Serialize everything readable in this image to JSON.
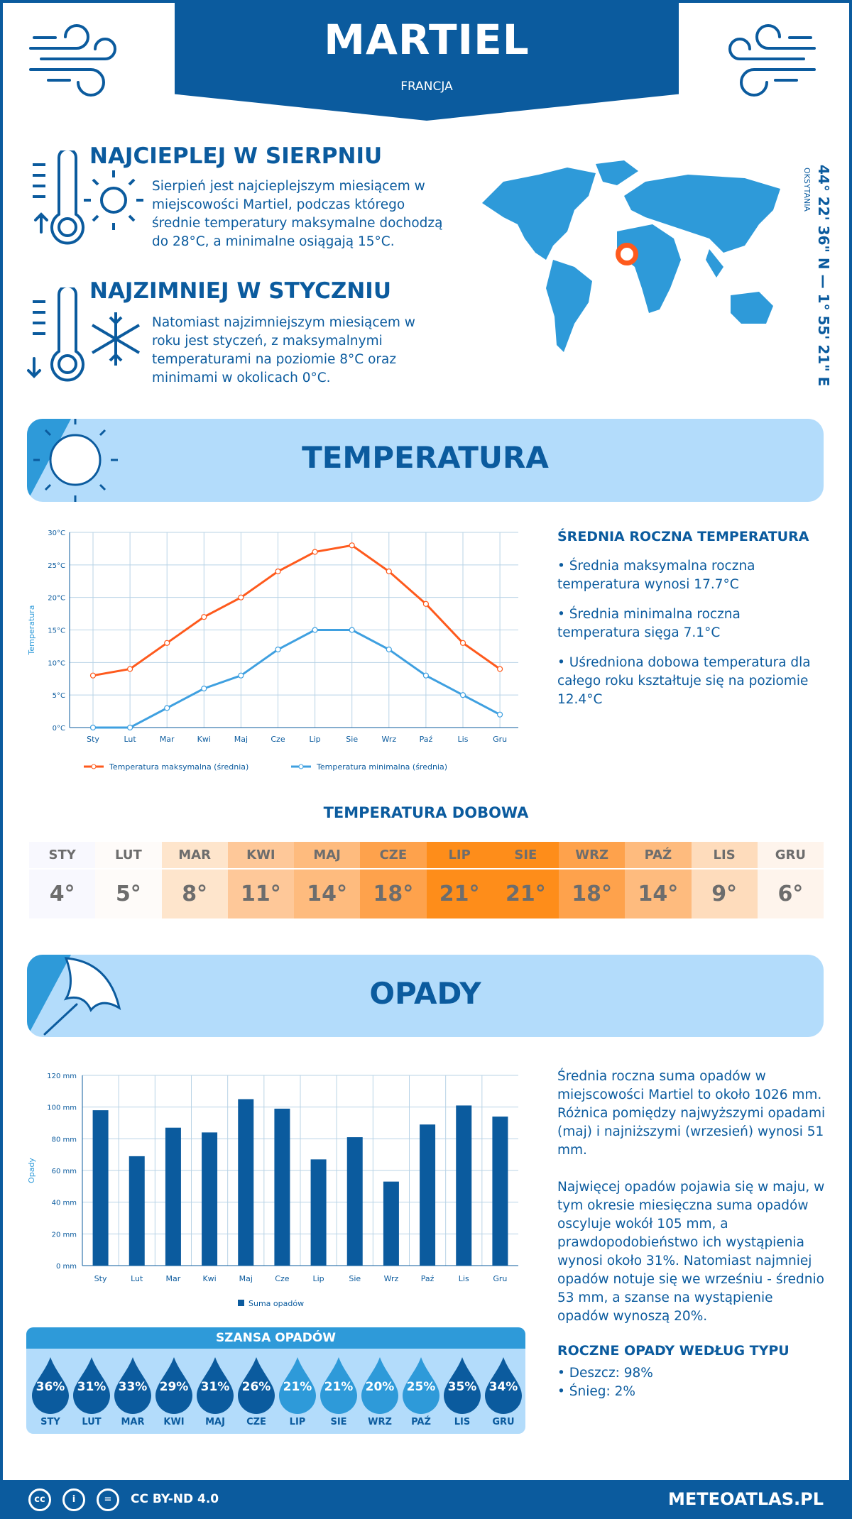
{
  "header": {
    "title": "MARTIEL",
    "country": "FRANCJA"
  },
  "coords": {
    "text": "44° 22' 36\" N — 1° 55' 21\" E",
    "region": "OKSYTANIA"
  },
  "warmest": {
    "title": "NAJCIEPLEJ W SIERPNIU",
    "text": "Sierpień jest najcieplejszym miesiącem w miejscowości Martiel, podczas którego średnie temperatury maksymalne dochodzą do 28°C, a minimalne osiągają 15°C."
  },
  "coldest": {
    "title": "NAJZIMNIEJ W STYCZNIU",
    "text": "Natomiast najzimniejszym miesiącem w roku jest styczeń, z maksymalnymi temperaturami na poziomie 8°C oraz minimami w okolicach 0°C."
  },
  "temp_section": {
    "title": "TEMPERATURA",
    "summary_title": "ŚREDNIA ROCZNA TEMPERATURA",
    "bullets": [
      "• Średnia maksymalna roczna temperatura wynosi 17.7°C",
      "• Średnia minimalna roczna temperatura sięga 7.1°C",
      "• Uśredniona dobowa temperatura dla całego roku kształtuje się na poziomie 12.4°C"
    ]
  },
  "daily": {
    "title": "TEMPERATURA DOBOWA",
    "months": [
      "STY",
      "LUT",
      "MAR",
      "KWI",
      "MAJ",
      "CZE",
      "LIP",
      "SIE",
      "WRZ",
      "PAŹ",
      "LIS",
      "GRU"
    ],
    "values": [
      "4°",
      "5°",
      "8°",
      "11°",
      "14°",
      "18°",
      "21°",
      "21°",
      "18°",
      "14°",
      "9°",
      "6°"
    ],
    "colors": [
      "#f8f8fe",
      "#fefbf9",
      "#fee5cc",
      "#fec899",
      "#febb7e",
      "#fea24c",
      "#fe8d1a",
      "#fe8d1a",
      "#fea24c",
      "#febb7e",
      "#fedcbc",
      "#fef4ec"
    ]
  },
  "precip_section": {
    "title": "OPADY",
    "text1": "Średnia roczna suma opadów w miejscowości Martiel to około 1026 mm. Różnica pomiędzy najwyższymi opadami (maj) i najniższymi (wrzesień) wynosi 51 mm.",
    "text2": "Najwięcej opadów pojawia się w maju, w tym okresie miesięczna suma opadów oscyluje wokół 105 mm, a prawdopodobieństwo ich wystąpienia wynosi około 31%. Natomiast najmniej opadów notuje się we wrześniu - średnio 53 mm, a szanse na wystąpienie opadów wynoszą 20%.",
    "type_title": "ROCZNE OPADY WEDŁUG TYPU",
    "types": [
      "• Deszcz: 98%",
      "• Śnieg: 2%"
    ]
  },
  "chance": {
    "title": "SZANSA OPADÓW",
    "months": [
      "STY",
      "LUT",
      "MAR",
      "KWI",
      "MAJ",
      "CZE",
      "LIP",
      "SIE",
      "WRZ",
      "PAŹ",
      "LIS",
      "GRU"
    ],
    "values": [
      "36%",
      "31%",
      "33%",
      "29%",
      "31%",
      "26%",
      "21%",
      "21%",
      "20%",
      "25%",
      "35%",
      "34%"
    ]
  },
  "colors": {
    "dark_blue": "#0b5b9e",
    "mid_blue": "#2e9ad9",
    "light_blue": "#b3dcfb",
    "max_line": "#fe5a1d",
    "min_line": "#3fa0e0"
  },
  "footer": {
    "license": "CC BY-ND 4.0",
    "site": "METEOATLAS.PL"
  },
  "chart_data": [
    {
      "type": "line",
      "categories": [
        "Sty",
        "Lut",
        "Mar",
        "Kwi",
        "Maj",
        "Cze",
        "Lip",
        "Sie",
        "Wrz",
        "Paź",
        "Lis",
        "Gru"
      ],
      "ylabel": "Temperatura",
      "ylim": [
        0,
        30
      ],
      "yticks": [
        "0°C",
        "5°C",
        "10°C",
        "15°C",
        "20°C",
        "25°C",
        "30°C"
      ],
      "grid": true,
      "legend": "bottom",
      "series": [
        {
          "name": "Temperatura maksymalna (średnia)",
          "values": [
            8,
            9,
            13,
            17,
            20,
            24,
            27,
            28,
            24,
            19,
            13,
            9
          ]
        },
        {
          "name": "Temperatura minimalna (średnia)",
          "values": [
            0,
            0,
            3,
            6,
            8,
            12,
            15,
            15,
            12,
            8,
            5,
            2
          ]
        }
      ]
    },
    {
      "type": "bar",
      "categories": [
        "Sty",
        "Lut",
        "Mar",
        "Kwi",
        "Maj",
        "Cze",
        "Lip",
        "Sie",
        "Wrz",
        "Paź",
        "Lis",
        "Gru"
      ],
      "ylabel": "Opady",
      "ylim": [
        0,
        120
      ],
      "yticks": [
        "0 mm",
        "20 mm",
        "40 mm",
        "60 mm",
        "80 mm",
        "100 mm",
        "120 mm"
      ],
      "grid": true,
      "legend": "bottom",
      "series": [
        {
          "name": "Suma opadów",
          "values": [
            98,
            69,
            87,
            84,
            105,
            99,
            67,
            81,
            53,
            89,
            101,
            94
          ]
        }
      ]
    }
  ]
}
